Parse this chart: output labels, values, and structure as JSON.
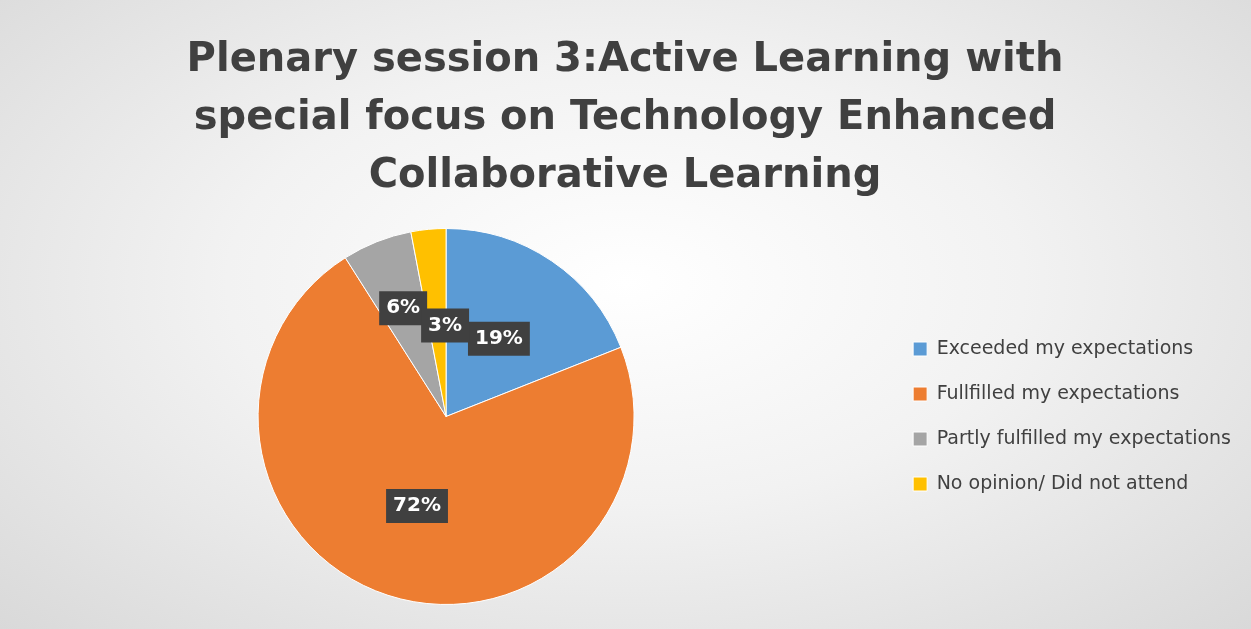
{
  "chart_data": {
    "type": "pie",
    "title": "Plenary session 3:Active Learning with special focus on Technology Enhanced Collaborative Learning",
    "categories": [
      "Exceeded my expectations",
      "Fullfilled my expectations",
      "Partly fulfilled my expectations",
      "No opinion/ Did not attend"
    ],
    "values": [
      19,
      72,
      6,
      3
    ],
    "value_labels": [
      "19%",
      "72%",
      "6%",
      "3%"
    ],
    "colors": [
      "#5b9bd5",
      "#ed7d31",
      "#a5a5a5",
      "#ffc000"
    ],
    "legend": "right"
  }
}
